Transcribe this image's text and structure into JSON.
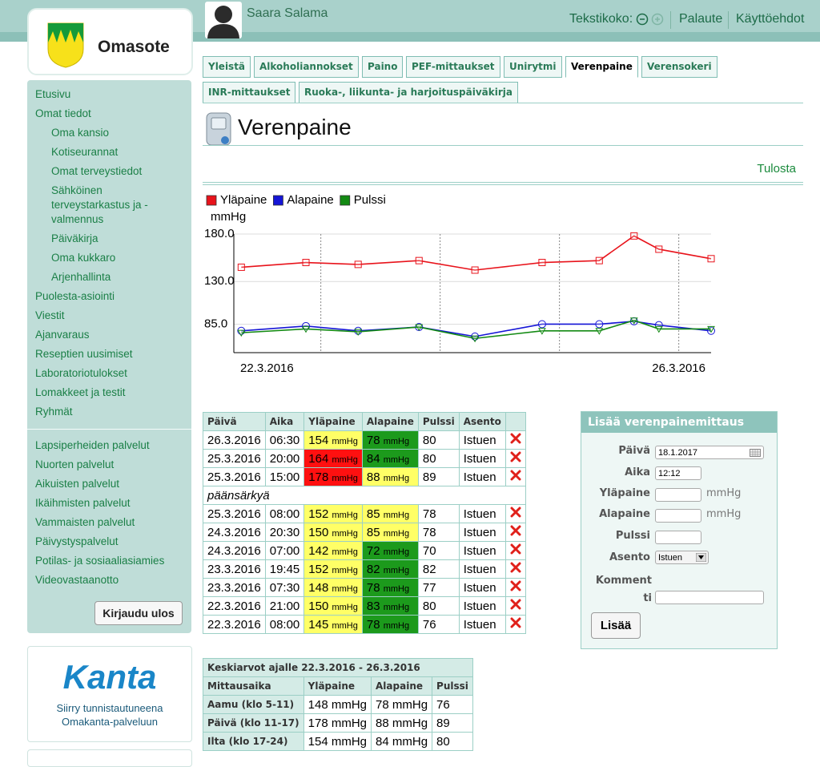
{
  "header": {
    "user": "Saara Salama",
    "text_size": "Tekstikoko:",
    "links": [
      "Palaute",
      "Käyttöehdot"
    ]
  },
  "logo": "Omasote",
  "nav": {
    "items": [
      {
        "label": "Etusivu",
        "level": 0
      },
      {
        "label": "Omat tiedot",
        "level": 0
      },
      {
        "label": "Oma kansio",
        "level": 1
      },
      {
        "label": "Kotiseurannat",
        "level": 1
      },
      {
        "label": "Omat terveystiedot",
        "level": 1
      },
      {
        "label": "Sähköinen terveystarkastus ja -valmennus",
        "level": 1
      },
      {
        "label": "Päiväkirja",
        "level": 1
      },
      {
        "label": "Oma kukkaro",
        "level": 1
      },
      {
        "label": "Arjenhallinta",
        "level": 1
      },
      {
        "label": "Puolesta-asiointi",
        "level": 0
      },
      {
        "label": "Viestit",
        "level": 0
      },
      {
        "label": "Ajanvaraus",
        "level": 0
      },
      {
        "label": "Reseptien uusimiset",
        "level": 0
      },
      {
        "label": "Laboratoriotulokset",
        "level": 0
      },
      {
        "label": "Lomakkeet ja testit",
        "level": 0
      },
      {
        "label": "Ryhmät",
        "level": 0
      }
    ],
    "services": [
      "Lapsiperheiden palvelut",
      "Nuorten palvelut",
      "Aikuisten palvelut",
      "Ikäihmisten palvelut",
      "Vammaisten palvelut",
      "Päivystyspalvelut",
      "Potilas- ja sosiaaliasiamies",
      "Videovastaanotto"
    ],
    "logout": "Kirjaudu ulos"
  },
  "kanta": {
    "logo": "Kanta",
    "text": "Siirry tunnistautuneena Omakanta-palveluun"
  },
  "tabs": {
    "items": [
      "Yleistä",
      "Alkoholiannokset",
      "Paino",
      "PEF-mittaukset",
      "Unirytmi",
      "Verenpaine",
      "Verensokeri",
      "INR-mittaukset",
      "Ruoka-, liikunta- ja harjoituspäiväkirja"
    ],
    "row_break": 7,
    "active": 5
  },
  "page": {
    "title": "Verenpaine",
    "print": "Tulosta"
  },
  "chart_data": {
    "type": "line",
    "ylabel": "mmHg",
    "x": [
      "22.3.2016 08:00",
      "22.3.2016 21:00",
      "23.3.2016 07:30",
      "23.3.2016 19:45",
      "24.3.2016 07:00",
      "24.3.2016 20:30",
      "25.3.2016 08:00",
      "25.3.2016 15:00",
      "25.3.2016 20:00",
      "26.3.2016 06:30"
    ],
    "series": [
      {
        "name": "Yläpaine",
        "color": "#e8131b",
        "marker": "square",
        "values": [
          145,
          150,
          148,
          152,
          142,
          150,
          152,
          178,
          164,
          154
        ]
      },
      {
        "name": "Alapaine",
        "color": "#1515d6",
        "marker": "circle",
        "values": [
          78,
          83,
          78,
          82,
          72,
          85,
          85,
          88,
          84,
          78
        ]
      },
      {
        "name": "Pulssi",
        "color": "#138a13",
        "marker": "triangle-down",
        "values": [
          76,
          80,
          77,
          82,
          70,
          78,
          78,
          89,
          80,
          80
        ]
      }
    ],
    "xlim": [
      "22.3.2016 06:30",
      "26.3.2016 06:30"
    ],
    "xticks": [
      {
        "value": "22.3.2016 06:30",
        "label": "22.3.2016"
      },
      {
        "value": "26.3.2016 06:30",
        "label": "26.3.2016"
      }
    ],
    "xgrid": [
      "23.3.2016",
      "24.3.2016",
      "25.3.2016",
      "26.3.2016"
    ],
    "ylim": [
      55,
      180
    ],
    "yticks": [
      {
        "value": 180,
        "label": "180.0"
      },
      {
        "value": 130,
        "label": "130.0"
      },
      {
        "value": 85,
        "label": "85.0"
      }
    ],
    "grid": true
  },
  "table": {
    "columns": [
      "Päivä",
      "Aika",
      "Yläpaine",
      "Alapaine",
      "Pulssi",
      "Asento"
    ],
    "unit": "mmHg",
    "rows": [
      {
        "date": "26.3.2016",
        "time": "06:30",
        "sys": 154,
        "sys_color": "#ffff66",
        "dia": 78,
        "dia_color": "#1c9a1c",
        "pulse": 80,
        "position": "Istuen"
      },
      {
        "date": "25.3.2016",
        "time": "20:00",
        "sys": 164,
        "sys_color": "#ff1010",
        "dia": 84,
        "dia_color": "#1c9a1c",
        "pulse": 80,
        "position": "Istuen"
      },
      {
        "date": "25.3.2016",
        "time": "15:00",
        "sys": 178,
        "sys_color": "#ff1010",
        "dia": 88,
        "dia_color": "#ffff66",
        "pulse": 89,
        "position": "Istuen"
      },
      {
        "comment": "päänsärkyä"
      },
      {
        "date": "25.3.2016",
        "time": "08:00",
        "sys": 152,
        "sys_color": "#ffff66",
        "dia": 85,
        "dia_color": "#ffff66",
        "pulse": 78,
        "position": "Istuen"
      },
      {
        "date": "24.3.2016",
        "time": "20:30",
        "sys": 150,
        "sys_color": "#ffff66",
        "dia": 85,
        "dia_color": "#ffff66",
        "pulse": 78,
        "position": "Istuen"
      },
      {
        "date": "24.3.2016",
        "time": "07:00",
        "sys": 142,
        "sys_color": "#ffff66",
        "dia": 72,
        "dia_color": "#1c9a1c",
        "pulse": 70,
        "position": "Istuen"
      },
      {
        "date": "23.3.2016",
        "time": "19:45",
        "sys": 152,
        "sys_color": "#ffff66",
        "dia": 82,
        "dia_color": "#1c9a1c",
        "pulse": 82,
        "position": "Istuen"
      },
      {
        "date": "23.3.2016",
        "time": "07:30",
        "sys": 148,
        "sys_color": "#ffff66",
        "dia": 78,
        "dia_color": "#1c9a1c",
        "pulse": 77,
        "position": "Istuen"
      },
      {
        "date": "22.3.2016",
        "time": "21:00",
        "sys": 150,
        "sys_color": "#ffff66",
        "dia": 83,
        "dia_color": "#1c9a1c",
        "pulse": 80,
        "position": "Istuen"
      },
      {
        "date": "22.3.2016",
        "time": "08:00",
        "sys": 145,
        "sys_color": "#ffff66",
        "dia": 78,
        "dia_color": "#1c9a1c",
        "pulse": 76,
        "position": "Istuen"
      }
    ]
  },
  "averages": {
    "title": "Keskiarvot ajalle 22.3.2016 - 26.3.2016",
    "columns": [
      "Mittausaika",
      "Yläpaine",
      "Alapaine",
      "Pulssi"
    ],
    "rows": [
      [
        "Aamu (klo 5-11)",
        "148 mmHg",
        "78 mmHg",
        "76"
      ],
      [
        "Päivä (klo 11-17)",
        "178 mmHg",
        "88 mmHg",
        "89"
      ],
      [
        "Ilta (klo 17-24)",
        "154 mmHg",
        "84 mmHg",
        "80"
      ]
    ]
  },
  "form": {
    "title": "Lisää verenpainemittaus",
    "date_label": "Päivä",
    "date": "18.1.2017",
    "time_label": "Aika",
    "time": "12:12",
    "sys_label": "Yläpaine",
    "dia_label": "Alapaine",
    "pulse_label": "Pulssi",
    "position_label": "Asento",
    "position": "Istuen",
    "comment_label": "Kommentti",
    "submit": "Lisää"
  }
}
